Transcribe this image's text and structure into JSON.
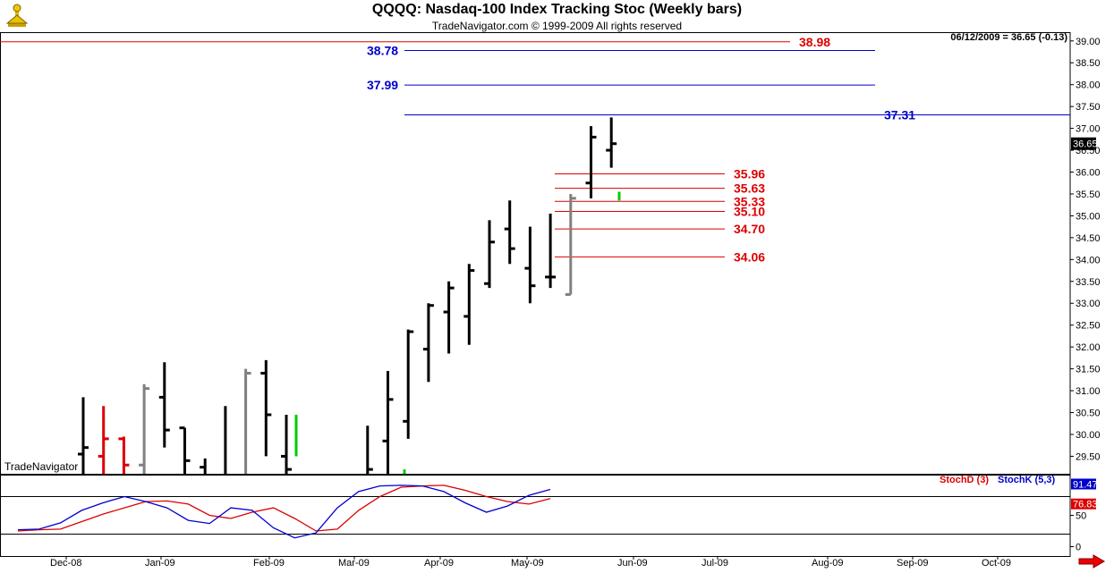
{
  "header": {
    "title": "QQQQ:  Nasdaq-100 Index Tracking Stoc  (Weekly bars)",
    "copyright": "TradeNavigator.com © 1999-2009 All rights reserved",
    "quote": "06/12/2009 = 36.65 (-0.13)",
    "watermark": "TradeNavigator"
  },
  "colors": {
    "up": "#000000",
    "down_red": "#dd0000",
    "gray": "#808080",
    "green": "#00cc00",
    "blue_level": "#0000cc",
    "red_level": "#dd0000",
    "stoch_d": "#dd0000",
    "stoch_k": "#0000cc"
  },
  "chart_data": [
    {
      "type": "ohlc",
      "title": "QQQQ:  Nasdaq-100 Index Tracking Stoc  (Weekly bars)",
      "ylim": [
        29.1,
        39.2
      ],
      "y_ticks": [
        "29.50",
        "30.00",
        "30.50",
        "31.00",
        "31.50",
        "32.00",
        "32.50",
        "33.00",
        "33.50",
        "34.00",
        "34.50",
        "35.00",
        "35.50",
        "36.00",
        "36.50",
        "37.00",
        "37.50",
        "38.00",
        "38.50",
        "39.00"
      ],
      "x_labels": [
        "Dec-08",
        "Jan-09",
        "Feb-09",
        "Mar-09",
        "Apr-09",
        "May-09",
        "Jun-09",
        "Jul-09",
        "Aug-09",
        "Sep-09",
        "Oct-09"
      ],
      "last_price_label": "36.65",
      "bars": [
        {
          "week": "2008-11-28",
          "o": 29.55,
          "h": 30.85,
          "l": 28.5,
          "c": 29.7,
          "color": "black"
        },
        {
          "week": "2008-12-05",
          "o": 29.5,
          "h": 30.65,
          "l": 28.6,
          "c": 29.9,
          "color": "red"
        },
        {
          "week": "2008-12-12",
          "o": 29.9,
          "h": 29.95,
          "l": 28.7,
          "c": 29.3,
          "color": "red"
        },
        {
          "week": "2008-12-19",
          "o": 29.3,
          "h": 31.15,
          "l": 28.8,
          "c": 31.05,
          "color": "gray"
        },
        {
          "week": "2008-12-26",
          "o": 30.85,
          "h": 31.65,
          "l": 29.7,
          "c": 30.1,
          "color": "black"
        },
        {
          "week": "2009-01-02",
          "o": 30.15,
          "h": 30.15,
          "l": 28.5,
          "c": 29.4,
          "color": "black"
        },
        {
          "week": "2009-01-09",
          "o": 29.25,
          "h": 29.45,
          "l": 28.3,
          "c": 28.6,
          "color": "black"
        },
        {
          "week": "2009-01-16",
          "o": 28.8,
          "h": 30.65,
          "l": 28.3,
          "c": 28.9,
          "color": "black"
        },
        {
          "week": "2009-01-23",
          "o": 28.9,
          "h": 31.5,
          "l": 28.5,
          "c": 31.4,
          "color": "gray"
        },
        {
          "week": "2009-01-30",
          "o": 31.4,
          "h": 31.7,
          "l": 29.5,
          "c": 30.45,
          "color": "black"
        },
        {
          "week": "2009-02-06",
          "o": 29.5,
          "h": 30.45,
          "l": 28.5,
          "c": 29.2,
          "color": "black"
        },
        {
          "week": "2009-02-13",
          "o": 28.9,
          "h": 29.0,
          "l": 28.5,
          "c": 28.7,
          "color": "black"
        },
        {
          "week": "2009-02-20",
          "o": 28.6,
          "h": 28.8,
          "l": 28.3,
          "c": 28.4,
          "color": "black"
        },
        {
          "week": "2009-02-27",
          "o": 28.4,
          "h": 28.6,
          "l": 28.2,
          "c": 28.3,
          "color": "black"
        },
        {
          "week": "2009-03-06",
          "o": 28.5,
          "h": 30.2,
          "l": 28.3,
          "c": 29.2,
          "color": "black"
        },
        {
          "week": "2009-03-13",
          "o": 29.85,
          "h": 31.45,
          "l": 28.8,
          "c": 30.8,
          "color": "black"
        },
        {
          "week": "2009-03-20",
          "o": 30.3,
          "h": 32.4,
          "l": 29.9,
          "c": 32.35,
          "color": "black"
        },
        {
          "week": "2009-03-27",
          "o": 31.95,
          "h": 33.0,
          "l": 31.2,
          "c": 32.95,
          "color": "black"
        },
        {
          "week": "2009-04-03",
          "o": 32.8,
          "h": 33.5,
          "l": 31.85,
          "c": 33.35,
          "color": "black"
        },
        {
          "week": "2009-04-10",
          "o": 32.7,
          "h": 33.9,
          "l": 32.05,
          "c": 33.75,
          "color": "black"
        },
        {
          "week": "2009-04-17",
          "o": 33.45,
          "h": 34.9,
          "l": 33.35,
          "c": 34.4,
          "color": "black"
        },
        {
          "week": "2009-04-24",
          "o": 34.7,
          "h": 35.35,
          "l": 33.9,
          "c": 34.25,
          "color": "black"
        },
        {
          "week": "2009-05-01",
          "o": 33.8,
          "h": 34.75,
          "l": 33.0,
          "c": 33.4,
          "color": "black"
        },
        {
          "week": "2009-05-08",
          "o": 33.6,
          "h": 35.05,
          "l": 33.35,
          "c": 33.6,
          "color": "black"
        },
        {
          "week": "2009-05-15",
          "o": 33.2,
          "h": 35.5,
          "l": 33.2,
          "c": 35.4,
          "color": "gray"
        },
        {
          "week": "2009-05-22",
          "o": 35.75,
          "h": 37.05,
          "l": 35.4,
          "c": 36.8,
          "color": "black"
        },
        {
          "week": "2009-05-29",
          "o": 36.5,
          "h": 37.25,
          "l": 36.1,
          "c": 36.65,
          "color": "black"
        }
      ],
      "blue_levels": [
        {
          "label": "38.78",
          "value": 38.78
        },
        {
          "label": "37.99",
          "value": 37.99
        },
        {
          "label": "37.31",
          "value": 37.31
        }
      ],
      "red_levels": [
        {
          "label": "38.98",
          "value": 38.98
        },
        {
          "label": "35.96",
          "value": 35.96
        },
        {
          "label": "35.63",
          "value": 35.63
        },
        {
          "label": "35.33",
          "value": 35.33
        },
        {
          "label": "35.10",
          "value": 35.1
        },
        {
          "label": "34.70",
          "value": 34.7
        },
        {
          "label": "34.06",
          "value": 34.06
        }
      ]
    },
    {
      "type": "line",
      "title": "",
      "ylim": [
        -15,
        115
      ],
      "y_ticks": [
        "0",
        "50"
      ],
      "reference_lines": [
        20,
        80
      ],
      "series": [
        {
          "name": "StochD (3)",
          "color": "#dd0000",
          "last_label": "76.83",
          "values": [
            25,
            27,
            28,
            40,
            52,
            62,
            72,
            73,
            68,
            50,
            45,
            55,
            62,
            45,
            25,
            28,
            58,
            80,
            95,
            97,
            98,
            90,
            80,
            72,
            68,
            76.83
          ]
        },
        {
          "name": "StochK (5,3)",
          "color": "#0000cc",
          "last_label": "91.47",
          "values": [
            27,
            28,
            38,
            58,
            70,
            80,
            72,
            62,
            42,
            37,
            62,
            58,
            30,
            14,
            22,
            62,
            88,
            97,
            98,
            97,
            88,
            70,
            55,
            65,
            82,
            91.47
          ]
        }
      ]
    }
  ]
}
